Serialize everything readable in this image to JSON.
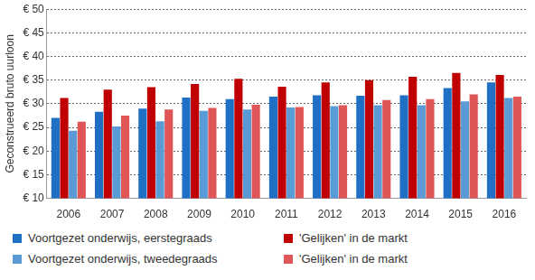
{
  "chart_data": {
    "type": "bar",
    "y_label": "Geconstrueerd bruto uurloon",
    "categories": [
      "2006",
      "2007",
      "2008",
      "2009",
      "2010",
      "2011",
      "2012",
      "2013",
      "2014",
      "2015",
      "2016"
    ],
    "series": [
      {
        "name": "Voortgezet onderwijs, eerstegraads",
        "color": "#1f6fc5",
        "values": [
          27.0,
          28.3,
          29.0,
          31.3,
          31.0,
          31.5,
          31.8,
          31.7,
          31.8,
          33.3,
          34.5
        ]
      },
      {
        "name": "'Gelijken' in de markt",
        "color": "#c00000",
        "values": [
          31.2,
          33.0,
          33.5,
          34.2,
          35.3,
          33.6,
          34.5,
          35.0,
          35.7,
          36.5,
          36.1
        ]
      },
      {
        "name": "Voortgezet onderwijs, tweedegraads",
        "color": "#5b9bd5",
        "values": [
          24.3,
          25.2,
          26.3,
          28.5,
          28.8,
          29.2,
          29.5,
          29.7,
          29.7,
          30.5,
          31.2
        ]
      },
      {
        "name": "'Gelijken' in de markt",
        "color": "#e05555",
        "values": [
          26.2,
          27.5,
          28.8,
          29.1,
          29.8,
          29.3,
          29.7,
          30.8,
          31.0,
          32.0,
          31.5
        ]
      }
    ],
    "ylim": [
      10,
      50
    ],
    "yticks": [
      {
        "value": 10,
        "label": "€ 10"
      },
      {
        "value": 15,
        "label": "€ 15"
      },
      {
        "value": 20,
        "label": "€ 20"
      },
      {
        "value": 25,
        "label": "€ 25"
      },
      {
        "value": 30,
        "label": "€ 30"
      },
      {
        "value": 35,
        "label": "€ 35"
      },
      {
        "value": 40,
        "label": "€ 40"
      },
      {
        "value": 45,
        "label": "€ 45"
      },
      {
        "value": 50,
        "label": "€ 50"
      }
    ],
    "grid": true,
    "legend": "bottom"
  }
}
